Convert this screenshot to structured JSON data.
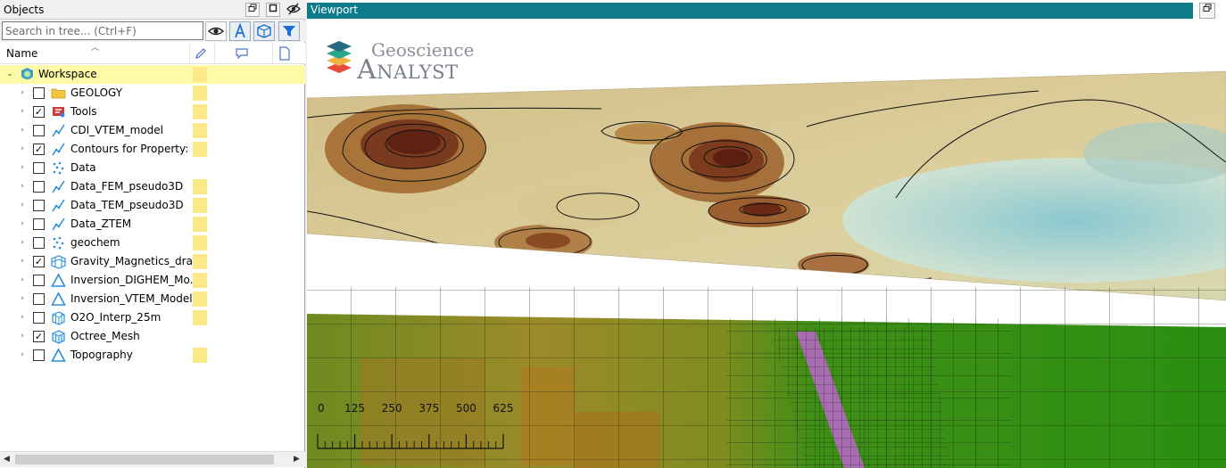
{
  "objects_panel": {
    "title": "Objects",
    "search": {
      "placeholder": "Search in tree... (Ctrl+F)",
      "value": ""
    },
    "header": {
      "name_col": "Name"
    },
    "colors": {
      "selected_row": "#fefaa8",
      "color_swatch": "#fde98a"
    },
    "tree": [
      {
        "label": "Workspace",
        "icon": "workspace-icon",
        "checkbox": null,
        "selected": true,
        "indent": 0,
        "swatch": true
      },
      {
        "label": "GEOLOGY",
        "icon": "folder-icon",
        "checkbox": false,
        "swatch": true
      },
      {
        "label": "Tools",
        "icon": "tools-icon",
        "checkbox": true,
        "swatch": true
      },
      {
        "label": "CDI_VTEM_model",
        "icon": "curve-icon",
        "checkbox": false,
        "swatch": true
      },
      {
        "label": "Contours for Property: ...",
        "icon": "curve-icon",
        "checkbox": true,
        "swatch": true
      },
      {
        "label": "Data",
        "icon": "points-icon",
        "checkbox": false,
        "swatch": false
      },
      {
        "label": "Data_FEM_pseudo3D",
        "icon": "curve-icon",
        "checkbox": false,
        "swatch": true
      },
      {
        "label": "Data_TEM_pseudo3D",
        "icon": "curve-icon",
        "checkbox": false,
        "swatch": true
      },
      {
        "label": "Data_ZTEM",
        "icon": "curve-icon",
        "checkbox": false,
        "swatch": true
      },
      {
        "label": "geochem",
        "icon": "points-icon",
        "checkbox": false,
        "swatch": true
      },
      {
        "label": "Gravity_Magnetics_dra...",
        "icon": "grid-surface-icon",
        "checkbox": true,
        "swatch": true
      },
      {
        "label": "Inversion_DIGHEM_Mo...",
        "icon": "triangle-icon",
        "checkbox": false,
        "swatch": true
      },
      {
        "label": "Inversion_VTEM_Model",
        "icon": "triangle-icon",
        "checkbox": false,
        "swatch": true
      },
      {
        "label": "O2O_Interp_25m",
        "icon": "block-model-icon",
        "checkbox": false,
        "swatch": true
      },
      {
        "label": "Octree_Mesh",
        "icon": "octree-icon",
        "checkbox": true,
        "swatch": false
      },
      {
        "label": "Topography",
        "icon": "triangle-icon",
        "checkbox": false,
        "swatch": true
      }
    ]
  },
  "viewport": {
    "title": "Viewport",
    "title_bar_color": "#0e7b8a",
    "logo": {
      "line1": "Geoscience",
      "line2": "Analyst"
    },
    "scale_bar": {
      "ticks": [
        "0",
        "125",
        "250",
        "375",
        "500",
        "625"
      ]
    }
  }
}
